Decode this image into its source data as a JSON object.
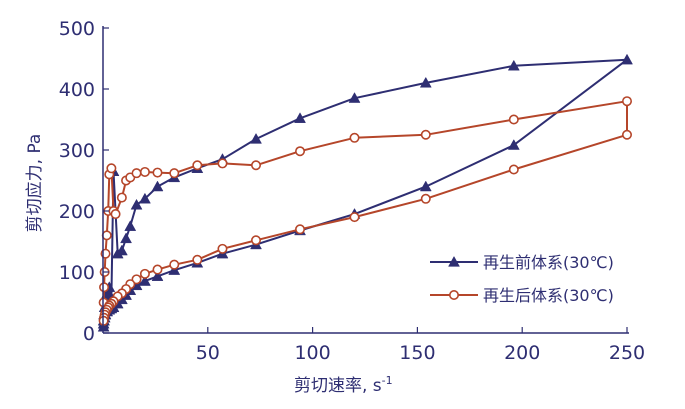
{
  "chart_data": {
    "type": "line",
    "xlabel": "剪切速率, s",
    "xlabel_sup": "-1",
    "ylabel": "剪切应力, Pa",
    "xlim": [
      0,
      250
    ],
    "ylim": [
      0,
      500
    ],
    "x_ticks": [
      50,
      100,
      150,
      200,
      250
    ],
    "y_ticks": [
      0,
      100,
      200,
      300,
      400,
      500
    ],
    "grid": false,
    "legend_position": "right",
    "series": [
      {
        "name": "再生前体系(30℃)",
        "color": "#2e2e72",
        "marker": "triangle",
        "points": [
          [
            0.3,
            20
          ],
          [
            0.5,
            30
          ],
          [
            0.8,
            42
          ],
          [
            1.2,
            55
          ],
          [
            2,
            65
          ],
          [
            3,
            75
          ],
          [
            4,
            58
          ],
          [
            5,
            265
          ],
          [
            7,
            130
          ],
          [
            9,
            135
          ],
          [
            11,
            155
          ],
          [
            13,
            175
          ],
          [
            16,
            210
          ],
          [
            20,
            220
          ],
          [
            26,
            240
          ],
          [
            34,
            255
          ],
          [
            45,
            270
          ],
          [
            57,
            285
          ],
          [
            73,
            318
          ],
          [
            94,
            352
          ],
          [
            120,
            385
          ],
          [
            154,
            410
          ],
          [
            196,
            438
          ],
          [
            250,
            448
          ],
          [
            196,
            308
          ],
          [
            154,
            240
          ],
          [
            120,
            195
          ],
          [
            94,
            168
          ],
          [
            73,
            145
          ],
          [
            57,
            130
          ],
          [
            45,
            115
          ],
          [
            34,
            103
          ],
          [
            26,
            93
          ],
          [
            20,
            85
          ],
          [
            16,
            78
          ],
          [
            13,
            70
          ],
          [
            11,
            62
          ],
          [
            9,
            55
          ],
          [
            7,
            48
          ],
          [
            5,
            42
          ],
          [
            4,
            40
          ],
          [
            3,
            38
          ],
          [
            2,
            35
          ],
          [
            1.2,
            30
          ],
          [
            0.8,
            25
          ],
          [
            0.5,
            20
          ],
          [
            0.3,
            15
          ],
          [
            0.3,
            10
          ]
        ]
      },
      {
        "name": "再生后体系(30℃)",
        "color": "#b5462a",
        "marker": "circle",
        "points": [
          [
            0.3,
            50
          ],
          [
            0.5,
            75
          ],
          [
            0.8,
            100
          ],
          [
            1.2,
            130
          ],
          [
            1.8,
            160
          ],
          [
            2.5,
            200
          ],
          [
            3,
            260
          ],
          [
            4,
            270
          ],
          [
            5,
            200
          ],
          [
            6,
            195
          ],
          [
            9,
            222
          ],
          [
            11,
            250
          ],
          [
            13,
            255
          ],
          [
            16,
            262
          ],
          [
            20,
            264
          ],
          [
            26,
            263
          ],
          [
            34,
            262
          ],
          [
            45,
            275
          ],
          [
            57,
            278
          ],
          [
            73,
            275
          ],
          [
            94,
            298
          ],
          [
            120,
            320
          ],
          [
            154,
            325
          ],
          [
            196,
            350
          ],
          [
            250,
            380
          ],
          [
            250,
            325
          ],
          [
            196,
            268
          ],
          [
            154,
            220
          ],
          [
            120,
            190
          ],
          [
            94,
            170
          ],
          [
            73,
            152
          ],
          [
            57,
            138
          ],
          [
            45,
            120
          ],
          [
            34,
            112
          ],
          [
            26,
            104
          ],
          [
            20,
            97
          ],
          [
            16,
            88
          ],
          [
            13,
            80
          ],
          [
            11,
            72
          ],
          [
            9,
            65
          ],
          [
            7,
            60
          ],
          [
            5,
            52
          ],
          [
            4,
            48
          ],
          [
            3,
            45
          ],
          [
            2.5,
            42
          ],
          [
            1.8,
            38
          ],
          [
            1.2,
            34
          ],
          [
            0.8,
            30
          ],
          [
            0.5,
            25
          ],
          [
            0.3,
            20
          ]
        ]
      }
    ]
  }
}
